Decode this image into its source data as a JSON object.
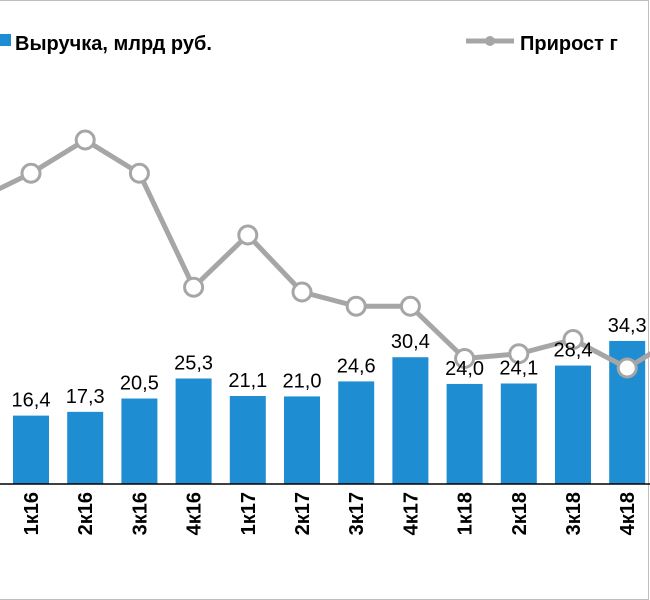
{
  "chart_data": {
    "type": "bar",
    "categories": [
      "1к16",
      "2к16",
      "3к16",
      "4к16",
      "1к17",
      "2к17",
      "3к17",
      "4к17",
      "1к18",
      "2к18",
      "3к18",
      "4к18"
    ],
    "series": [
      {
        "name": "Выручка, млрд руб.",
        "type": "bar",
        "color": "#1f8dd1",
        "values": [
          16.4,
          17.3,
          20.5,
          25.3,
          21.1,
          21.0,
          24.6,
          30.4,
          24.0,
          24.1,
          28.4,
          34.3
        ],
        "labels": [
          "16,4",
          "17,3",
          "20,5",
          "25,3",
          "21,1",
          "21,0",
          "24,6",
          "30,4",
          "24,0",
          "24,1",
          "28,4",
          "34,3"
        ]
      },
      {
        "name": "Прирост г",
        "type": "line",
        "color": "#a6a6a6",
        "values": [
          61,
          68,
          61,
          37,
          48,
          36,
          33,
          33,
          22,
          23,
          26,
          20
        ]
      }
    ],
    "legend_position": "top",
    "grid": false
  }
}
